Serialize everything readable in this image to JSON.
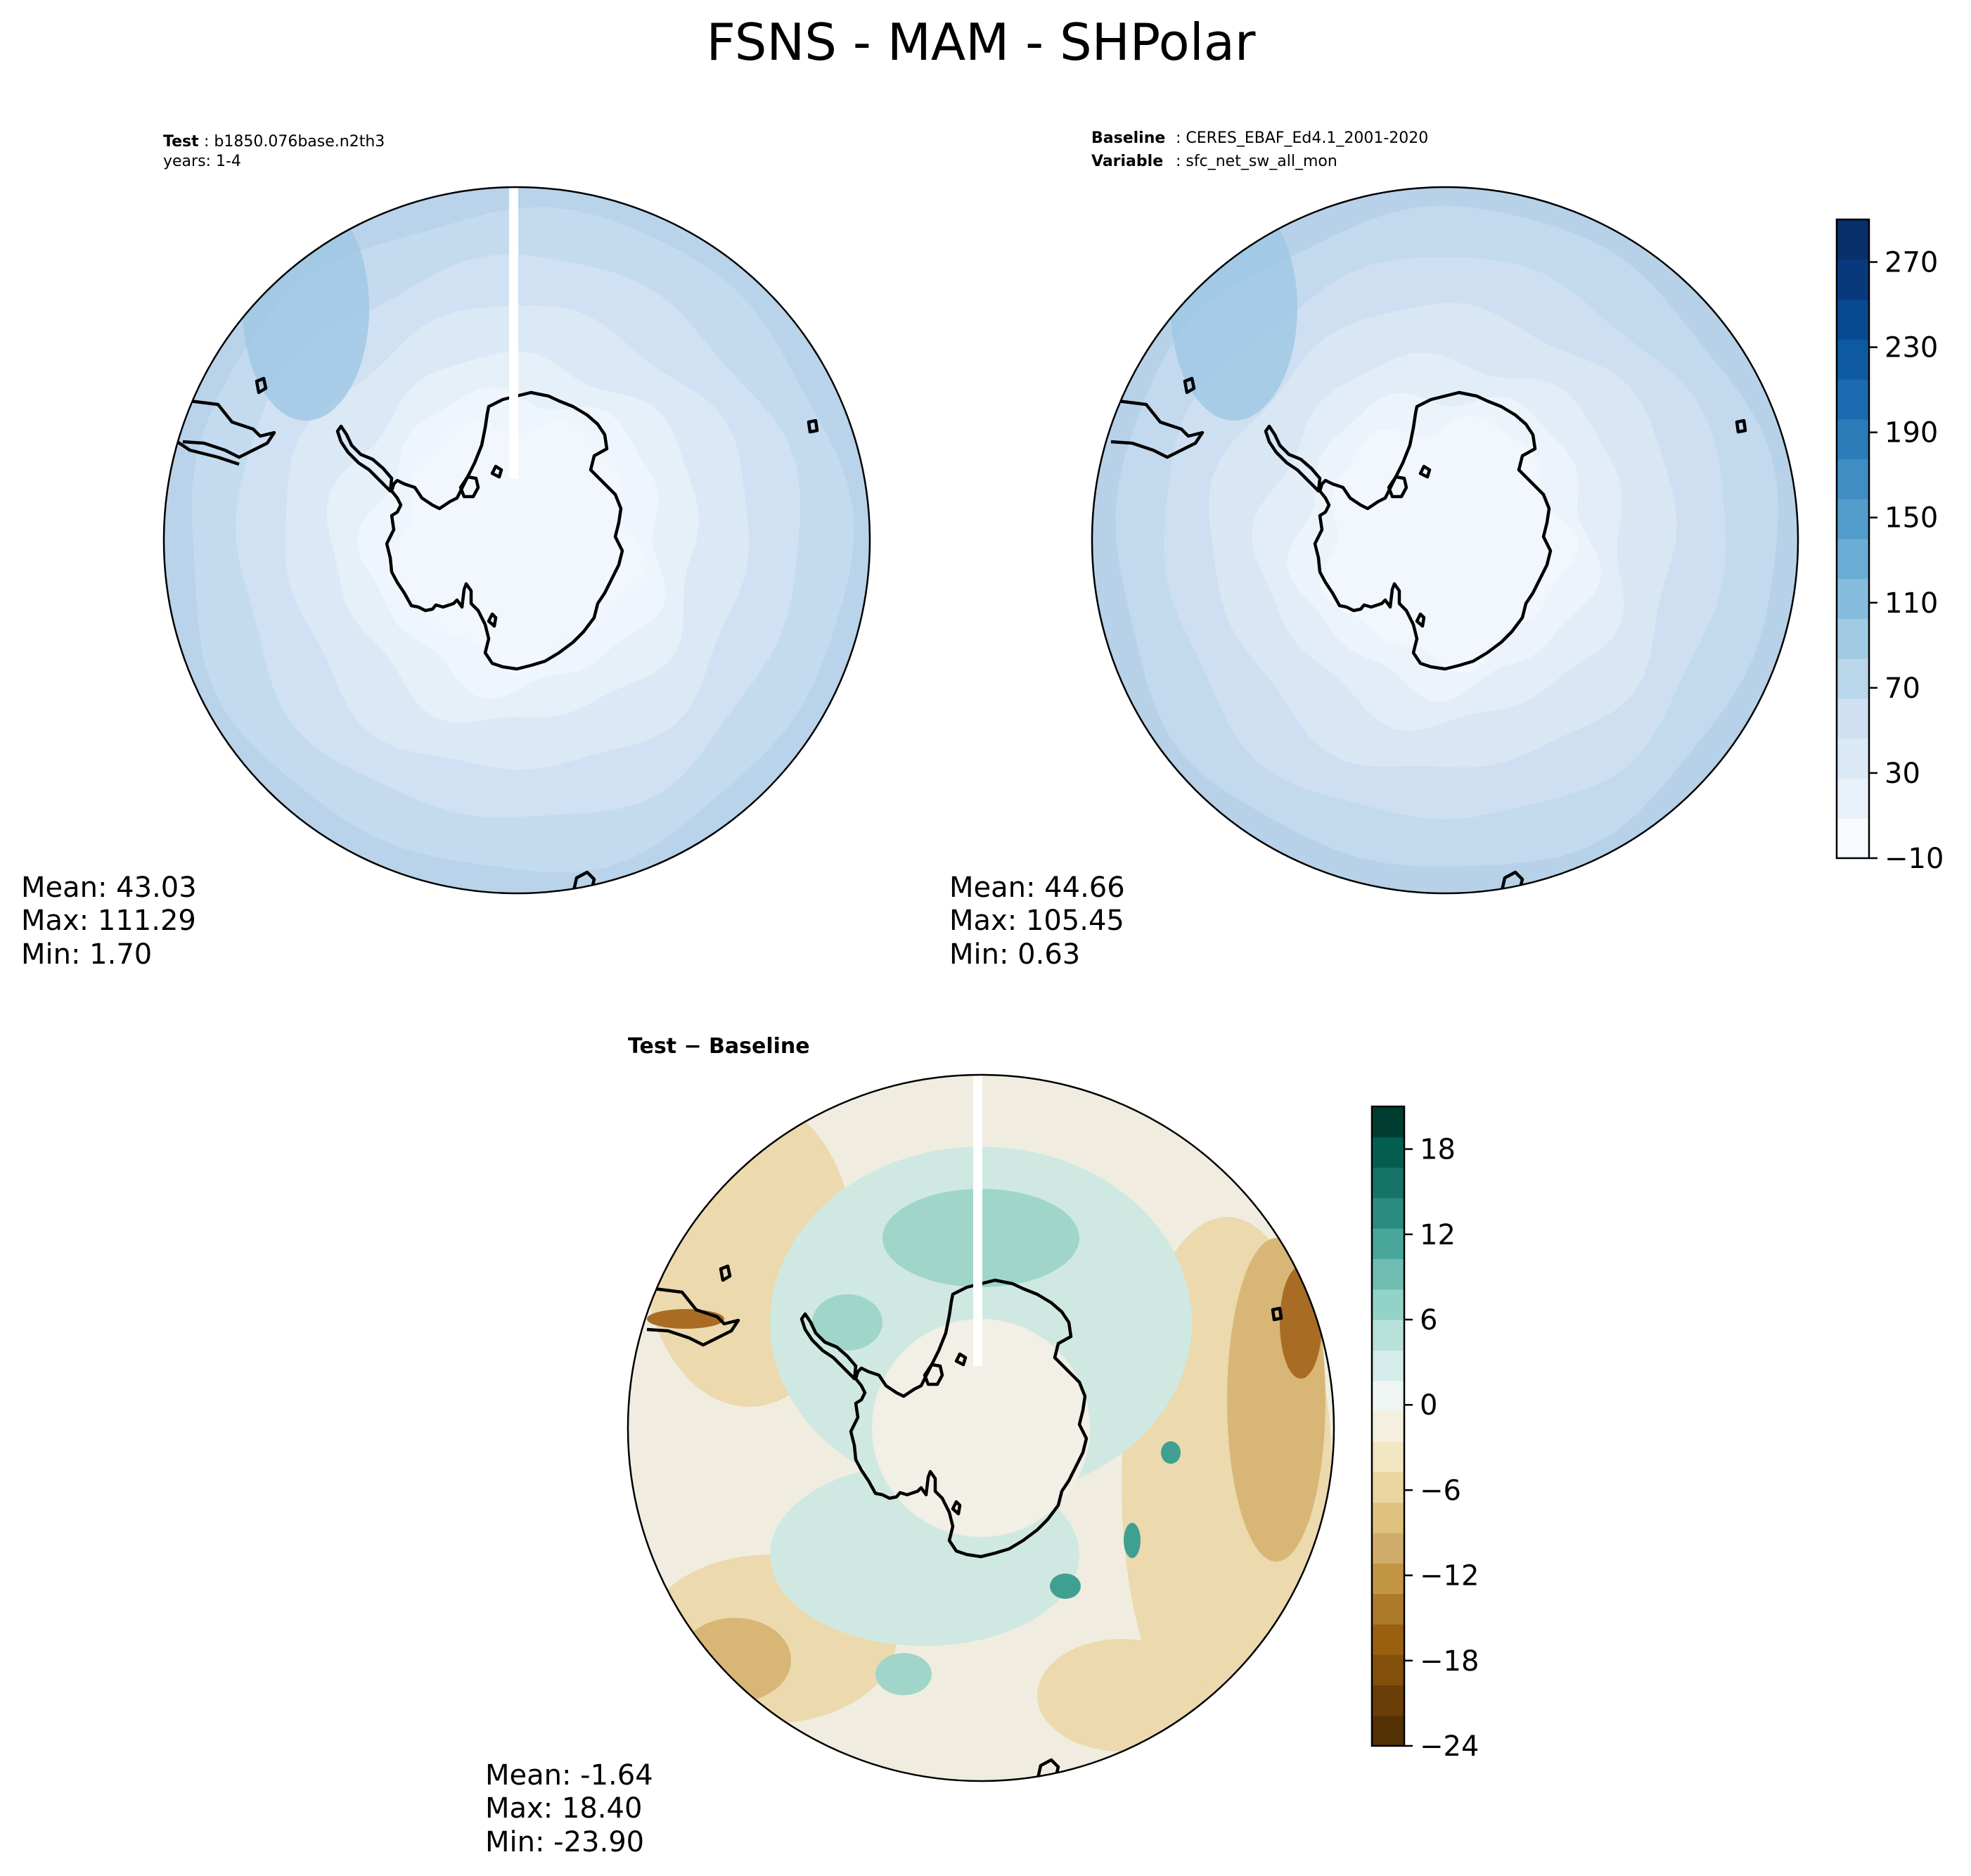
{
  "figure": {
    "title": "FSNS - MAM - SHPolar"
  },
  "panels": {
    "test": {
      "label": "Test",
      "name": "b1850.076base.n2th3",
      "years": "years: 1-4",
      "stats": {
        "mean": "Mean: 43.03",
        "max": "Max: 111.29",
        "min": "Min:  1.70"
      }
    },
    "baseline": {
      "label": "Baseline",
      "name": "CERES_EBAF_Ed4.1_2001-2020",
      "variable_label": "Variable",
      "variable": "sfc_net_sw_all_mon",
      "stats": {
        "mean": "Mean: 44.66",
        "max": "Max: 105.45",
        "min": "Min:  0.63"
      }
    },
    "diff": {
      "label": "Test − Baseline",
      "stats": {
        "mean": "Mean: -1.64",
        "max": "Max: 18.40",
        "min": "Min: -23.90"
      }
    }
  },
  "colorbars": {
    "main": {
      "colormap": "Blues",
      "range": [
        -10,
        290
      ],
      "tick_values": [
        -10,
        30,
        70,
        110,
        150,
        190,
        230,
        270
      ],
      "tick_labels": [
        "−10",
        "30",
        "70",
        "110",
        "150",
        "190",
        "230",
        "270"
      ],
      "colors": [
        "#f7fbff",
        "#e8f1fa",
        "#dbe9f6",
        "#cee0f2",
        "#bad6eb",
        "#a1cbe2",
        "#86bcdd",
        "#6aaed6",
        "#529dcc",
        "#3e8ec4",
        "#2c7cba",
        "#1c6aaf",
        "#0d5aa3",
        "#084a91",
        "#08397d",
        "#08306b"
      ]
    },
    "diff": {
      "colormap": "BrBG",
      "range": [
        -24,
        21
      ],
      "tick_values": [
        -24,
        -18,
        -12,
        -6,
        0,
        6,
        12,
        18
      ],
      "tick_labels": [
        "−24",
        "−18",
        "−12",
        "−6",
        "0",
        "6",
        "12",
        "18"
      ],
      "colors": [
        "#543005",
        "#6b3d09",
        "#83500b",
        "#99600f",
        "#ad7a2b",
        "#c29544",
        "#d0ad6a",
        "#dfc27d",
        "#ebd5a0",
        "#f3e6c2",
        "#f5efdf",
        "#eef5f3",
        "#d5eeeb",
        "#b8e1da",
        "#93d3c7",
        "#6ebdb0",
        "#48a69a",
        "#2b8b81",
        "#157368",
        "#035e50",
        "#003c30"
      ]
    }
  },
  "fields": {
    "test_rings": [
      "#b8d3ea",
      "#c4dbef",
      "#cfe1f2",
      "#dbe8f5",
      "#e6f0f9",
      "#eff5fc",
      "#f2f7fd"
    ],
    "base_rings": [
      "#b6d1e8",
      "#c2d9ee",
      "#cddff1",
      "#d9e6f4",
      "#e3edf8",
      "#edf3fa",
      "#f2f7fd"
    ],
    "diff_base": "#f0ede0",
    "diff_blobs": [
      {
        "tone": "teal_light",
        "color": "#cfe9e2"
      },
      {
        "tone": "teal_mid",
        "color": "#9fd6c9"
      },
      {
        "tone": "teal_dark",
        "color": "#3fa092"
      },
      {
        "tone": "brown_light",
        "color": "#ecd9ad"
      },
      {
        "tone": "brown_mid",
        "color": "#d8b776"
      },
      {
        "tone": "brown_dark",
        "color": "#a86c25"
      }
    ]
  }
}
